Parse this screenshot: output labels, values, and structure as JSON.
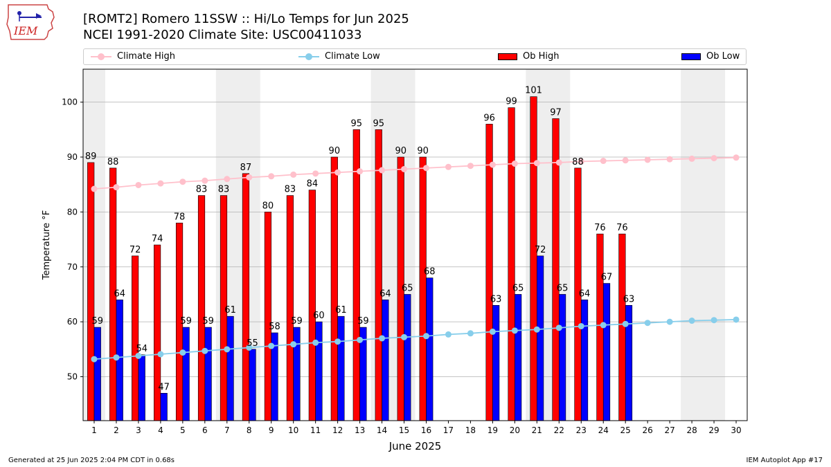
{
  "header": {
    "title_line1": "[ROMT2] Romero 11SSW :: Hi/Lo Temps for Jun 2025",
    "title_line2": "NCEI 1991-2020 Climate Site: USC00411033",
    "logo_text": "IEM"
  },
  "legend": {
    "items": [
      {
        "label": "Climate High",
        "kind": "line",
        "color": "#ffc0cb"
      },
      {
        "label": "Climate Low",
        "kind": "line",
        "color": "#87ceeb"
      },
      {
        "label": "Ob High",
        "kind": "bar",
        "color": "#ff0000"
      },
      {
        "label": "Ob Low",
        "kind": "bar",
        "color": "#0000ff"
      }
    ]
  },
  "footer": {
    "left": "Generated at 25 Jun 2025 2:04 PM CDT in 0.68s",
    "right": "IEM Autoplot App #17"
  },
  "chart_data": {
    "type": "bar",
    "xlabel": "June 2025",
    "ylabel": "Temperature °F",
    "ylim": [
      42,
      106
    ],
    "xlim": [
      0.5,
      30.5
    ],
    "yticks": [
      50,
      60,
      70,
      80,
      90,
      100
    ],
    "categories": [
      1,
      2,
      3,
      4,
      5,
      6,
      7,
      8,
      9,
      10,
      11,
      12,
      13,
      14,
      15,
      16,
      17,
      18,
      19,
      20,
      21,
      22,
      23,
      24,
      25,
      26,
      27,
      28,
      29,
      30
    ],
    "weekend_shading": [
      [
        1,
        1
      ],
      [
        7,
        8
      ],
      [
        14,
        15
      ],
      [
        21,
        22
      ],
      [
        28,
        29
      ]
    ],
    "grid": "horizontal",
    "legend_placement": "top",
    "colors": {
      "ob_high": "#ff0000",
      "ob_low": "#0000ff",
      "climate_high": "#ffc0cb",
      "climate_low": "#87ceeb",
      "shade": "#eeeeee"
    },
    "series": [
      {
        "name": "Ob High",
        "kind": "bar",
        "values": [
          89,
          88,
          72,
          74,
          78,
          83,
          83,
          87,
          80,
          83,
          84,
          90,
          95,
          95,
          90,
          90,
          null,
          null,
          96,
          99,
          101,
          97,
          88,
          76,
          76,
          null,
          null,
          null,
          null,
          null
        ]
      },
      {
        "name": "Ob Low",
        "kind": "bar",
        "values": [
          59,
          64,
          54,
          47,
          59,
          59,
          61,
          55,
          58,
          59,
          60,
          61,
          59,
          64,
          65,
          68,
          null,
          null,
          63,
          65,
          72,
          65,
          64,
          67,
          63,
          null,
          null,
          null,
          null,
          null
        ]
      },
      {
        "name": "Climate High",
        "kind": "line",
        "values": [
          84.2,
          84.5,
          84.9,
          85.2,
          85.5,
          85.7,
          86.0,
          86.3,
          86.5,
          86.8,
          87.0,
          87.2,
          87.4,
          87.6,
          87.8,
          88.0,
          88.2,
          88.4,
          88.6,
          88.8,
          88.9,
          89.0,
          89.2,
          89.3,
          89.4,
          89.5,
          89.6,
          89.7,
          89.8,
          89.9
        ]
      },
      {
        "name": "Climate Low",
        "kind": "line",
        "values": [
          53.2,
          53.5,
          53.8,
          54.1,
          54.4,
          54.7,
          55.0,
          55.3,
          55.6,
          55.9,
          56.2,
          56.4,
          56.7,
          57.0,
          57.2,
          57.4,
          57.7,
          57.9,
          58.2,
          58.4,
          58.6,
          58.9,
          59.2,
          59.4,
          59.6,
          59.8,
          60.0,
          60.2,
          60.3,
          60.4
        ]
      }
    ]
  }
}
